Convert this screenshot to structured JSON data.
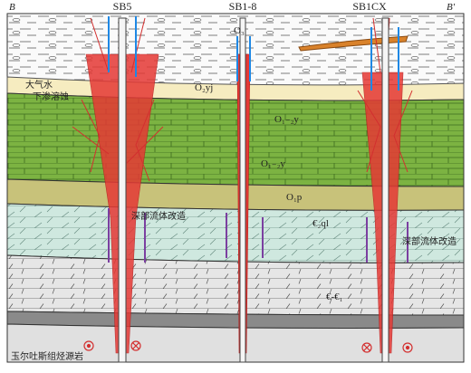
{
  "header": {
    "left": "B",
    "right": "B'",
    "wells": [
      "SB5",
      "SB1-8",
      "SB1CX"
    ]
  },
  "strata": [
    "O₃",
    "O₂yj",
    "O₁₋₂y",
    "O₁₋₂y",
    "O₁p",
    "€₂ql",
    "€-€₁"
  ],
  "annotations": {
    "meteoric_1": "大气水",
    "meteoric_2": "下渗溶蚀",
    "deep_fluid_1": "深部流体改造",
    "deep_fluid_2": "深部流体改造",
    "source_rock": "玉尔吐斯组烃源岩"
  }
}
